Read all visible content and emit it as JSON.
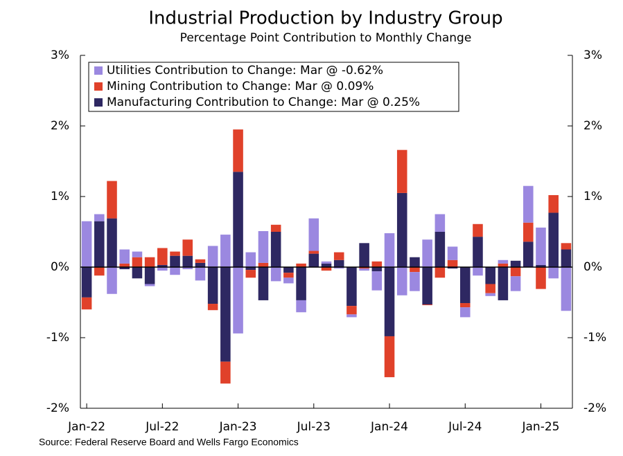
{
  "chart_data": {
    "type": "bar",
    "stacked": true,
    "title": "Industrial Production by Industry Group",
    "subtitle": "Percentage Point Contribution to Monthly Change",
    "source": "Source: Federal Reserve Board and Wells Fargo Economics",
    "categories": [
      "Jan-22",
      null,
      null,
      null,
      null,
      null,
      "Jul-22",
      null,
      null,
      null,
      null,
      null,
      "Jan-23",
      null,
      null,
      null,
      null,
      null,
      "Jul-23",
      null,
      null,
      null,
      null,
      null,
      "Jan-24",
      null,
      null,
      null,
      null,
      null,
      "Jul-24",
      null,
      null,
      null,
      null,
      null,
      "Jan-25",
      null,
      null
    ],
    "series": [
      {
        "name": "Utilities Contribution to Change: Mar @ -0.62%",
        "color": "#9b88e0",
        "values": [
          0.65,
          0.1,
          -0.38,
          0.2,
          0.08,
          -0.03,
          -0.05,
          -0.11,
          -0.03,
          -0.19,
          0.3,
          0.46,
          -0.94,
          0.21,
          0.45,
          -0.2,
          -0.08,
          -0.17,
          0.46,
          0.03,
          -0.02,
          -0.04,
          -0.03,
          -0.27,
          0.48,
          -0.4,
          -0.27,
          0.39,
          0.25,
          0.19,
          -0.14,
          -0.12,
          -0.04,
          0.05,
          -0.21,
          0.52,
          0.53,
          -0.16,
          -0.62
        ]
      },
      {
        "name": "Mining Contribution to Change: Mar @ 0.09%",
        "color": "#e0412a",
        "values": [
          -0.17,
          -0.12,
          0.53,
          0.05,
          0.14,
          0.14,
          0.24,
          0.06,
          0.23,
          0.05,
          -0.09,
          -0.31,
          0.6,
          -0.11,
          0.06,
          0.1,
          -0.07,
          0.05,
          0.04,
          -0.05,
          0.11,
          -0.12,
          -0.02,
          0.08,
          -0.58,
          0.61,
          -0.07,
          -0.01,
          -0.15,
          0.1,
          -0.06,
          0.18,
          -0.13,
          0.05,
          -0.13,
          0.27,
          -0.31,
          0.25,
          0.09
        ]
      },
      {
        "name": "Manufacturing Contribution to Change: Mar @ 0.25%",
        "color": "#2e2862",
        "values": [
          -0.43,
          0.65,
          0.69,
          -0.03,
          -0.16,
          -0.24,
          0.03,
          0.16,
          0.16,
          0.06,
          -0.52,
          -1.34,
          1.35,
          -0.04,
          -0.47,
          0.5,
          -0.08,
          -0.47,
          0.19,
          0.05,
          0.1,
          -0.55,
          0.34,
          -0.06,
          -0.98,
          1.05,
          0.14,
          -0.53,
          0.5,
          -0.02,
          -0.51,
          0.43,
          -0.24,
          -0.47,
          0.09,
          0.36,
          0.03,
          0.77,
          0.25
        ]
      }
    ],
    "ylim": [
      -2,
      3
    ],
    "yticks": [
      {
        "value": -2,
        "label": "-2%"
      },
      {
        "value": -1,
        "label": "-1%"
      },
      {
        "value": 0,
        "label": "0%"
      },
      {
        "value": 1,
        "label": "1%"
      },
      {
        "value": 2,
        "label": "2%"
      },
      {
        "value": 3,
        "label": "3%"
      }
    ],
    "y2lim": [
      -2,
      3
    ],
    "y2ticks": [
      {
        "value": -2,
        "label": "-2%"
      },
      {
        "value": -1,
        "label": "-1%"
      },
      {
        "value": 0,
        "label": "0%"
      },
      {
        "value": 1,
        "label": "1%"
      },
      {
        "value": 2,
        "label": "2%"
      },
      {
        "value": 3,
        "label": "3%"
      }
    ],
    "legend": "top-left"
  }
}
